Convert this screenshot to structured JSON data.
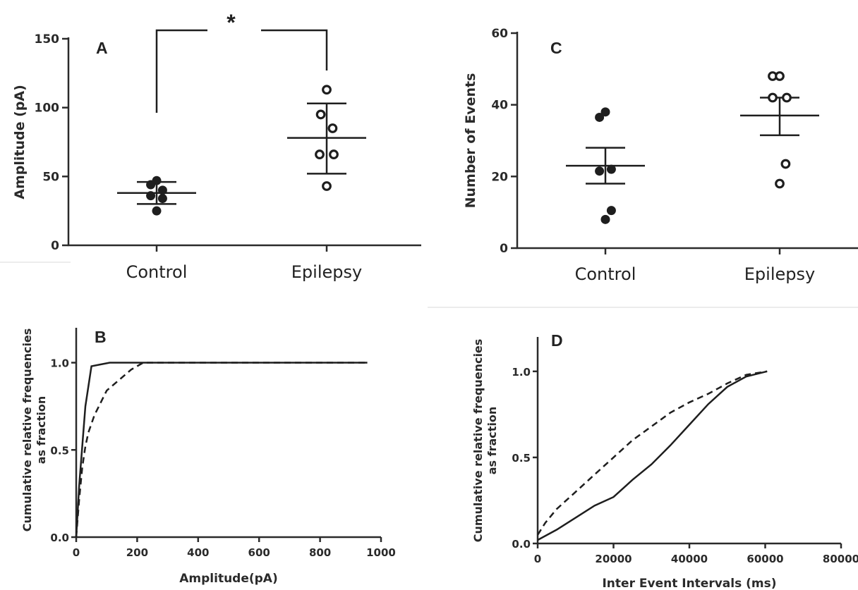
{
  "chart_data": [
    {
      "panel": "A",
      "type": "scatter",
      "categories": [
        "Control",
        "Epilepsy"
      ],
      "ylabel": "Amplitude (pA)",
      "ylim": [
        0,
        150
      ],
      "yticks": [
        "0",
        "50",
        "100",
        "150"
      ],
      "series": [
        {
          "category": "Control",
          "marker": "filled",
          "points": [
            25,
            34,
            36,
            40,
            44,
            47
          ],
          "mean": 38,
          "err_low": 30,
          "err_high": 46
        },
        {
          "category": "Epilepsy",
          "marker": "open",
          "points": [
            43,
            66,
            66,
            85,
            95,
            113
          ],
          "mean": 78,
          "err_low": 52,
          "err_high": 103
        }
      ],
      "significance": {
        "between": [
          "Control",
          "Epilepsy"
        ],
        "label": "*"
      }
    },
    {
      "panel": "C",
      "type": "scatter",
      "categories": [
        "Control",
        "Epilepsy"
      ],
      "ylabel": "Number of Events",
      "ylim": [
        0,
        60
      ],
      "yticks": [
        "0",
        "20",
        "40",
        "60"
      ],
      "series": [
        {
          "category": "Control",
          "marker": "filled",
          "points": [
            8,
            10.5,
            21.5,
            22,
            36.5,
            38
          ],
          "mean": 23,
          "err_low": 18,
          "err_high": 28
        },
        {
          "category": "Epilepsy",
          "marker": "open",
          "points": [
            18,
            23.5,
            42,
            42,
            48,
            48
          ],
          "mean": 37,
          "err_low": 31.5,
          "err_high": 42
        }
      ]
    },
    {
      "panel": "B",
      "type": "line",
      "xlabel": "Amplitude(pA)",
      "ylabel": "Cumulative relative frequencies as fraction",
      "xlim": [
        0,
        1000
      ],
      "ylim": [
        0,
        1.2
      ],
      "xticks": [
        "0",
        "200",
        "400",
        "600",
        "800",
        "1000"
      ],
      "yticks": [
        "0.0",
        "0.5",
        "1.0"
      ],
      "series": [
        {
          "style": "solid",
          "x": [
            0,
            10,
            30,
            50,
            80,
            110,
            955
          ],
          "y": [
            0,
            0.3,
            0.75,
            0.98,
            0.99,
            1.0,
            1.0
          ]
        },
        {
          "style": "dashed",
          "x": [
            0,
            10,
            20,
            30,
            40,
            60,
            80,
            100,
            140,
            180,
            220,
            955
          ],
          "y": [
            0,
            0.22,
            0.4,
            0.52,
            0.6,
            0.7,
            0.77,
            0.84,
            0.9,
            0.96,
            1.0,
            1.0
          ]
        }
      ]
    },
    {
      "panel": "D",
      "type": "line",
      "xlabel": "Inter Event Intervals (ms)",
      "ylabel": "Cumulative relative frequencies as fraction",
      "xlim": [
        0,
        80000
      ],
      "ylim": [
        0,
        1.2
      ],
      "xticks": [
        "0",
        "20000",
        "40000",
        "60000",
        "80000"
      ],
      "yticks": [
        "0.0",
        "0.5",
        "1.0"
      ],
      "series": [
        {
          "style": "solid",
          "x": [
            0,
            5000,
            10000,
            15000,
            20000,
            25000,
            30000,
            35000,
            40000,
            45000,
            50000,
            55000,
            60500
          ],
          "y": [
            0.02,
            0.08,
            0.15,
            0.22,
            0.27,
            0.37,
            0.46,
            0.57,
            0.69,
            0.81,
            0.91,
            0.97,
            1.0
          ]
        },
        {
          "style": "dashed",
          "x": [
            0,
            2000,
            5000,
            10000,
            15000,
            20000,
            25000,
            30000,
            35000,
            40000,
            45000,
            50000,
            55000,
            60500
          ],
          "y": [
            0.05,
            0.12,
            0.2,
            0.3,
            0.4,
            0.5,
            0.6,
            0.68,
            0.76,
            0.82,
            0.87,
            0.93,
            0.98,
            1.0
          ]
        }
      ]
    }
  ]
}
